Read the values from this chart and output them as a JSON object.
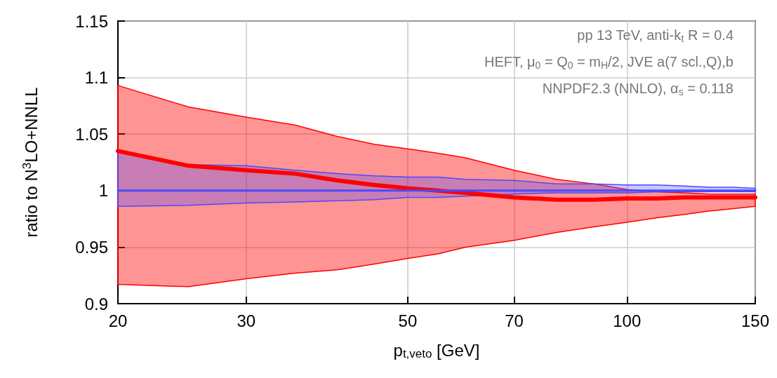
{
  "chart_data": {
    "type": "line",
    "xlabel": "p$_{t,veto}$ [GeV]",
    "ylabel": "ratio to N$^{3}$LO+NNLL",
    "annotations": [
      "pp 13 TeV, anti-k$_{t}$ R = 0.4",
      "HEFT, μ$_{0}$ = Q$_{0}$ = m$_{H}$/2, JVE a(7 scl.,Q),b",
      "NNPDF2.3 (NNLO), α$_{s}$ = 0.118"
    ],
    "x": [
      20,
      25,
      30,
      35,
      40,
      45,
      50,
      55,
      60,
      70,
      80,
      90,
      100,
      110,
      120,
      130,
      140,
      150
    ],
    "series": [
      {
        "color": "#ff0000",
        "values": [
          1.035,
          1.022,
          1.018,
          1.015,
          1.009,
          1.005,
          1.002,
          1.0,
          0.998,
          0.994,
          0.992,
          0.992,
          0.993,
          0.993,
          0.994,
          0.994,
          0.994,
          0.994
        ],
        "lower": [
          0.917,
          0.915,
          0.922,
          0.927,
          0.93,
          0.935,
          0.94,
          0.944,
          0.95,
          0.956,
          0.963,
          0.968,
          0.972,
          0.976,
          0.979,
          0.982,
          0.984,
          0.986
        ],
        "upper": [
          1.093,
          1.074,
          1.065,
          1.058,
          1.048,
          1.041,
          1.037,
          1.033,
          1.029,
          1.018,
          1.01,
          1.006,
          1.001,
          0.999,
          0.998,
          0.997,
          0.997,
          0.997
        ]
      },
      {
        "color": "#4a4aff",
        "values": [
          1,
          1,
          1,
          1,
          1,
          1,
          1,
          1,
          1,
          1,
          1,
          1,
          1,
          1,
          1,
          1,
          1,
          1
        ],
        "lower": [
          0.986,
          0.987,
          0.989,
          0.99,
          0.991,
          0.992,
          0.994,
          0.994,
          0.995,
          0.997,
          0.998,
          0.998,
          0.998,
          0.999,
          0.999,
          0.999,
          0.999,
          0.999
        ],
        "upper": [
          1.035,
          1.023,
          1.022,
          1.018,
          1.015,
          1.013,
          1.012,
          1.012,
          1.01,
          1.009,
          1.006,
          1.006,
          1.005,
          1.005,
          1.004,
          1.003,
          1.003,
          1.002
        ]
      }
    ],
    "log": "x",
    "xlim": [
      20,
      150
    ],
    "xticks": [
      20,
      30,
      50,
      70,
      100,
      150
    ],
    "ylim": [
      0.9,
      1.15
    ],
    "yticks": [
      0.9,
      0.95,
      1,
      1.05,
      1.1,
      1.15
    ],
    "grid": true,
    "marker": "none",
    "line_style": "solid"
  }
}
